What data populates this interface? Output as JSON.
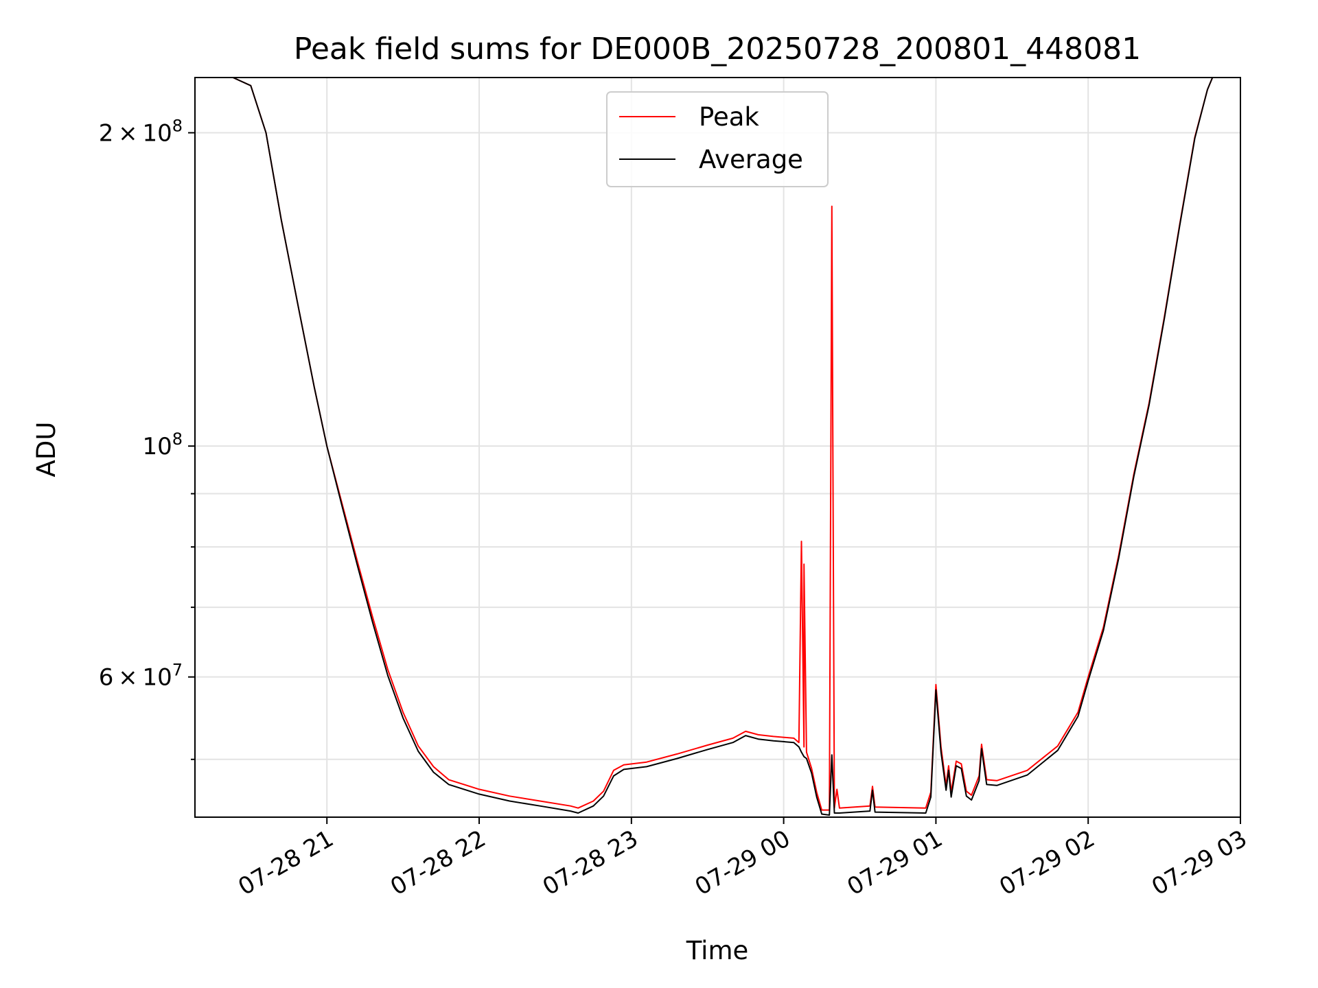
{
  "chart_data": {
    "type": "line",
    "title": "Peak field sums for DE000B_20250728_200801_448081",
    "xlabel": "Time",
    "ylabel": "ADU",
    "y_scale": "log",
    "ylim": [
      44000000,
      226000000
    ],
    "xlim": [
      "07-28 20:08",
      "07-29 03:00"
    ],
    "grid": true,
    "legend_position": "top-center",
    "x_ticks": [
      {
        "t": "07-28 21:00",
        "label": "07-28 21"
      },
      {
        "t": "07-28 22:00",
        "label": "07-28 22"
      },
      {
        "t": "07-28 23:00",
        "label": "07-28 23"
      },
      {
        "t": "07-29 00:00",
        "label": "07-29 00"
      },
      {
        "t": "07-29 01:00",
        "label": "07-29 01"
      },
      {
        "t": "07-29 02:00",
        "label": "07-29 02"
      },
      {
        "t": "07-29 03:00",
        "label": "07-29 03"
      }
    ],
    "y_major_ticks": [
      {
        "value": 200000000,
        "mantissa": "2",
        "base": "10",
        "exp": "8"
      },
      {
        "value": 100000000,
        "mantissa": "",
        "base": "10",
        "exp": "8"
      },
      {
        "value": 60000000,
        "mantissa": "6",
        "base": "10",
        "exp": "7"
      }
    ],
    "y_minor_ticks": [
      50000000,
      70000000,
      80000000,
      90000000
    ],
    "series": [
      {
        "name": "Peak",
        "color": "#ff0000",
        "points": [
          [
            "07-28 20:08",
            226000000
          ],
          [
            "07-28 20:23",
            226000000
          ],
          [
            "07-28 20:30",
            222000000
          ],
          [
            "07-28 20:36",
            200000000
          ],
          [
            "07-28 20:42",
            165000000
          ],
          [
            "07-28 20:49",
            135000000
          ],
          [
            "07-28 20:55",
            114000000
          ],
          [
            "07-28 21:00",
            100000000
          ],
          [
            "07-28 21:06",
            88000000
          ],
          [
            "07-28 21:12",
            77500000
          ],
          [
            "07-28 21:18",
            68500000
          ],
          [
            "07-28 21:24",
            61000000
          ],
          [
            "07-28 21:30",
            55500000
          ],
          [
            "07-28 21:36",
            51500000
          ],
          [
            "07-28 21:42",
            49200000
          ],
          [
            "07-28 21:48",
            47800000
          ],
          [
            "07-28 22:00",
            46800000
          ],
          [
            "07-28 22:12",
            46100000
          ],
          [
            "07-28 22:24",
            45600000
          ],
          [
            "07-28 22:36",
            45100000
          ],
          [
            "07-28 22:39",
            44900000
          ],
          [
            "07-28 22:45",
            45600000
          ],
          [
            "07-28 22:49",
            46600000
          ],
          [
            "07-28 22:53",
            48800000
          ],
          [
            "07-28 22:57",
            49400000
          ],
          [
            "07-28 23:06",
            49700000
          ],
          [
            "07-28 23:18",
            50600000
          ],
          [
            "07-28 23:30",
            51600000
          ],
          [
            "07-28 23:40",
            52400000
          ],
          [
            "07-28 23:45",
            53200000
          ],
          [
            "07-28 23:50",
            52800000
          ],
          [
            "07-28 23:56",
            52600000
          ],
          [
            "07-29 00:04",
            52400000
          ],
          [
            "07-29 00:06",
            51900000
          ],
          [
            "07-29 00:07",
            81000000
          ],
          [
            "07-29 00:08",
            51400000
          ],
          [
            "07-29 00:08",
            77000000
          ],
          [
            "07-29 00:09",
            50800000
          ],
          [
            "07-29 00:11",
            49000000
          ],
          [
            "07-29 00:13",
            46500000
          ],
          [
            "07-29 00:15",
            44700000
          ],
          [
            "07-29 00:18",
            44700000
          ],
          [
            "07-29 00:19",
            170000000
          ],
          [
            "07-29 00:20",
            44900000
          ],
          [
            "07-29 00:21",
            46800000
          ],
          [
            "07-29 00:22",
            44900000
          ],
          [
            "07-29 00:34",
            45100000
          ],
          [
            "07-29 00:35",
            47100000
          ],
          [
            "07-29 00:36",
            45000000
          ],
          [
            "07-29 00:56",
            44900000
          ],
          [
            "07-29 00:58",
            46500000
          ],
          [
            "07-29 01:00",
            59000000
          ],
          [
            "07-29 01:02",
            51400000
          ],
          [
            "07-29 01:04",
            47200000
          ],
          [
            "07-29 01:05",
            49300000
          ],
          [
            "07-29 01:06",
            46500000
          ],
          [
            "07-29 01:08",
            49800000
          ],
          [
            "07-29 01:10",
            49500000
          ],
          [
            "07-29 01:12",
            46600000
          ],
          [
            "07-29 01:14",
            46200000
          ],
          [
            "07-29 01:17",
            48200000
          ],
          [
            "07-29 01:18",
            51700000
          ],
          [
            "07-29 01:20",
            47800000
          ],
          [
            "07-29 01:24",
            47700000
          ],
          [
            "07-29 01:36",
            48800000
          ],
          [
            "07-29 01:48",
            51500000
          ],
          [
            "07-29 01:56",
            55500000
          ],
          [
            "07-29 02:00",
            60000000
          ],
          [
            "07-29 02:06",
            67000000
          ],
          [
            "07-29 02:12",
            78500000
          ],
          [
            "07-29 02:18",
            94000000
          ],
          [
            "07-29 02:24",
            110000000
          ],
          [
            "07-29 02:30",
            133000000
          ],
          [
            "07-29 02:36",
            163000000
          ],
          [
            "07-29 02:42",
            198000000
          ],
          [
            "07-29 02:47",
            220000000
          ],
          [
            "07-29 02:49",
            226000000
          ]
        ]
      },
      {
        "name": "Average",
        "color": "#000000",
        "points": [
          [
            "07-28 20:08",
            226000000
          ],
          [
            "07-28 20:23",
            226000000
          ],
          [
            "07-28 20:30",
            222000000
          ],
          [
            "07-28 20:36",
            200000000
          ],
          [
            "07-28 20:42",
            165000000
          ],
          [
            "07-28 20:49",
            135000000
          ],
          [
            "07-28 20:55",
            114000000
          ],
          [
            "07-28 21:00",
            100000000
          ],
          [
            "07-28 21:06",
            87500000
          ],
          [
            "07-28 21:12",
            76800000
          ],
          [
            "07-28 21:18",
            67700000
          ],
          [
            "07-28 21:24",
            60200000
          ],
          [
            "07-28 21:30",
            54800000
          ],
          [
            "07-28 21:36",
            50900000
          ],
          [
            "07-28 21:42",
            48600000
          ],
          [
            "07-28 21:48",
            47300000
          ],
          [
            "07-28 22:00",
            46300000
          ],
          [
            "07-28 22:12",
            45600000
          ],
          [
            "07-28 22:24",
            45100000
          ],
          [
            "07-28 22:36",
            44600000
          ],
          [
            "07-28 22:39",
            44400000
          ],
          [
            "07-28 22:45",
            45100000
          ],
          [
            "07-28 22:49",
            46100000
          ],
          [
            "07-28 22:53",
            48200000
          ],
          [
            "07-28 22:57",
            48900000
          ],
          [
            "07-28 23:06",
            49200000
          ],
          [
            "07-28 23:18",
            50100000
          ],
          [
            "07-28 23:30",
            51100000
          ],
          [
            "07-28 23:40",
            51900000
          ],
          [
            "07-28 23:45",
            52700000
          ],
          [
            "07-28 23:50",
            52300000
          ],
          [
            "07-28 23:56",
            52100000
          ],
          [
            "07-29 00:04",
            51900000
          ],
          [
            "07-29 00:06",
            51400000
          ],
          [
            "07-29 00:07",
            50800000
          ],
          [
            "07-29 00:08",
            50300000
          ],
          [
            "07-29 00:09",
            50100000
          ],
          [
            "07-29 00:11",
            48500000
          ],
          [
            "07-29 00:13",
            46000000
          ],
          [
            "07-29 00:15",
            44300000
          ],
          [
            "07-29 00:18",
            44200000
          ],
          [
            "07-29 00:19",
            50500000
          ],
          [
            "07-29 00:20",
            44400000
          ],
          [
            "07-29 00:22",
            44400000
          ],
          [
            "07-29 00:34",
            44600000
          ],
          [
            "07-29 00:35",
            46700000
          ],
          [
            "07-29 00:36",
            44500000
          ],
          [
            "07-29 00:56",
            44400000
          ],
          [
            "07-29 00:58",
            46000000
          ],
          [
            "07-29 01:00",
            58300000
          ],
          [
            "07-29 01:02",
            50800000
          ],
          [
            "07-29 01:04",
            46700000
          ],
          [
            "07-29 01:05",
            48800000
          ],
          [
            "07-29 01:06",
            46000000
          ],
          [
            "07-29 01:08",
            49300000
          ],
          [
            "07-29 01:10",
            49000000
          ],
          [
            "07-29 01:12",
            46100000
          ],
          [
            "07-29 01:14",
            45700000
          ],
          [
            "07-29 01:17",
            47700000
          ],
          [
            "07-29 01:18",
            51200000
          ],
          [
            "07-29 01:20",
            47300000
          ],
          [
            "07-29 01:24",
            47200000
          ],
          [
            "07-29 01:36",
            48300000
          ],
          [
            "07-29 01:48",
            51000000
          ],
          [
            "07-29 01:56",
            55000000
          ],
          [
            "07-29 02:00",
            59500000
          ],
          [
            "07-29 02:06",
            66500000
          ],
          [
            "07-29 02:12",
            78000000
          ],
          [
            "07-29 02:18",
            93500000
          ],
          [
            "07-29 02:24",
            109500000
          ],
          [
            "07-29 02:30",
            132500000
          ],
          [
            "07-29 02:36",
            162500000
          ],
          [
            "07-29 02:42",
            197500000
          ],
          [
            "07-29 02:47",
            220000000
          ],
          [
            "07-29 02:49",
            226000000
          ]
        ]
      }
    ]
  }
}
